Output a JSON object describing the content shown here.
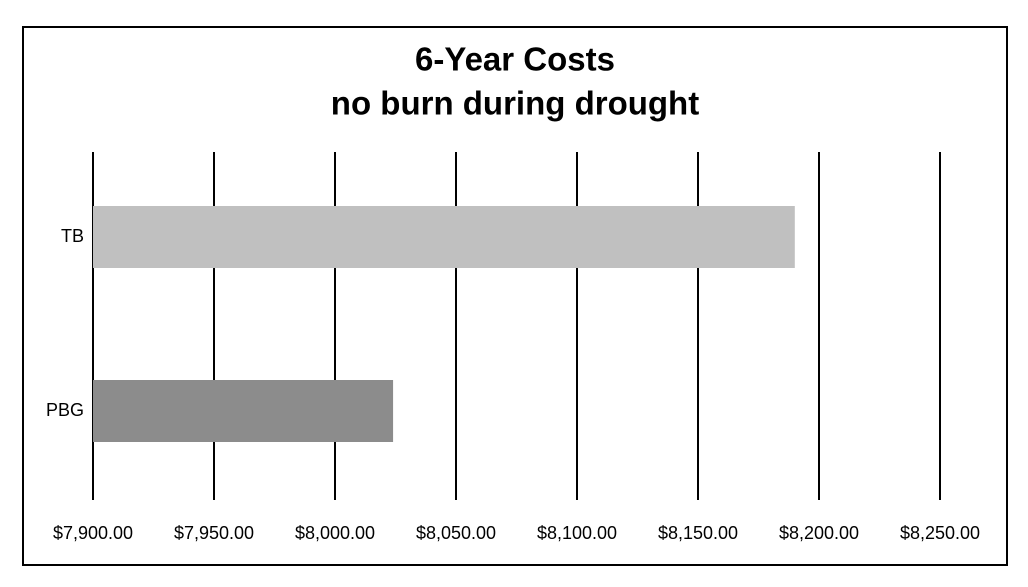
{
  "chart_data": {
    "type": "hbar",
    "title": "6-Year Costs",
    "subtitle": "no burn during drought",
    "categories": [
      "TB",
      "PBG"
    ],
    "values": [
      8190,
      8024
    ],
    "colors": [
      "#c0c0c0",
      "#8c8c8c"
    ],
    "xlim": [
      7900,
      8250
    ],
    "xticks": [
      {
        "value": 7900,
        "label": "$7,900.00"
      },
      {
        "value": 7950,
        "label": "$7,950.00"
      },
      {
        "value": 8000,
        "label": "$8,000.00"
      },
      {
        "value": 8050,
        "label": "$8,050.00"
      },
      {
        "value": 8100,
        "label": "$8,100.00"
      },
      {
        "value": 8150,
        "label": "$8,150.00"
      },
      {
        "value": 8200,
        "label": "$8,200.00"
      },
      {
        "value": 8250,
        "label": "$8,250.00"
      }
    ],
    "grid": true
  }
}
